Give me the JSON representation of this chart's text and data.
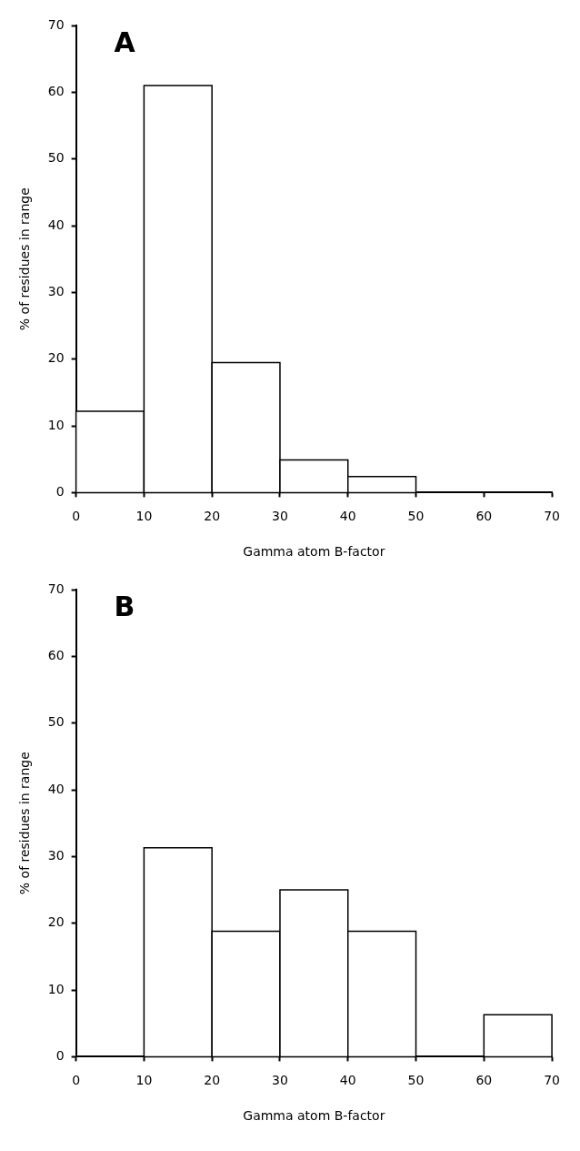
{
  "chart_data": [
    {
      "type": "histogram",
      "title": "A",
      "xlabel": "Gamma atom B-factor",
      "ylabel": "% of residues in range",
      "bins": [
        0,
        10,
        20,
        30,
        40,
        50,
        60,
        70
      ],
      "values": [
        12.2,
        61,
        19.5,
        4.9,
        2.4,
        0,
        0
      ],
      "color": "#ffffff",
      "xlim": [
        0,
        70
      ],
      "xticks": [
        0,
        10,
        20,
        30,
        40,
        50,
        60,
        70
      ],
      "ylim": [
        0,
        70
      ],
      "yticks": [
        0,
        10,
        20,
        30,
        40,
        50,
        60,
        70
      ],
      "grid": false,
      "legend": false
    },
    {
      "type": "histogram",
      "title": "B",
      "xlabel": "Gamma atom B-factor",
      "ylabel": "% of residues in range",
      "bins": [
        0,
        10,
        20,
        30,
        40,
        50,
        60,
        70
      ],
      "values": [
        0,
        31.3,
        18.8,
        25,
        18.8,
        0,
        6.3
      ],
      "color": "#ffffff",
      "xlim": [
        0,
        70
      ],
      "xticks": [
        0,
        10,
        20,
        30,
        40,
        50,
        60,
        70
      ],
      "ylim": [
        0,
        70
      ],
      "yticks": [
        0,
        10,
        20,
        30,
        40,
        50,
        60,
        70
      ],
      "grid": false,
      "legend": false
    }
  ]
}
